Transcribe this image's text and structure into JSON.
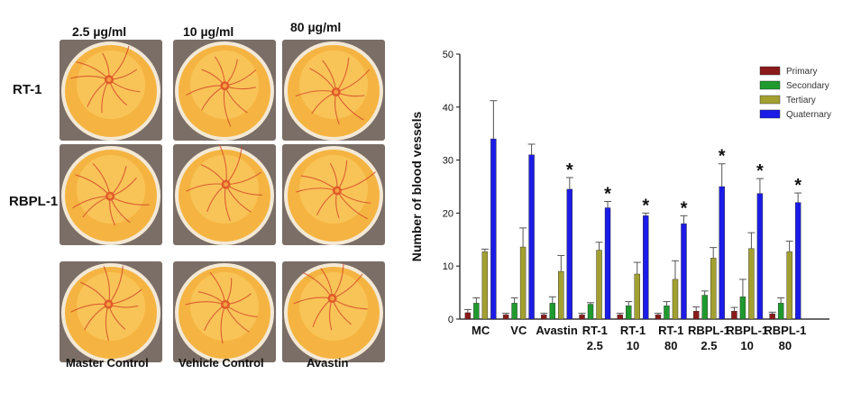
{
  "left_panel": {
    "column_labels": [
      "2.5 µg/ml",
      "10 µg/ml",
      "80 µg/ml"
    ],
    "row_labels": [
      "RT-1",
      "RBPL-1"
    ],
    "bottom_labels": [
      "Master Control",
      "Vehicle Control",
      "Avastin"
    ],
    "colors": {
      "egg_yolk": "#f5b441",
      "egg_shell": "#f3e9d6",
      "vessel": "#d2452a",
      "background": "#7a6e66"
    }
  },
  "chart_data": {
    "type": "bar",
    "title": "",
    "xlabel": "",
    "ylabel": "Number of blood vessels",
    "ylim": [
      0,
      50
    ],
    "yticks": [
      0,
      10,
      20,
      30,
      40,
      50
    ],
    "grid": false,
    "legend_position": "top-right",
    "categories": [
      [
        "MC"
      ],
      [
        "VC"
      ],
      [
        "Avastin"
      ],
      [
        "RT-1",
        "2.5"
      ],
      [
        "RT-1",
        "10"
      ],
      [
        "RT-1",
        "80"
      ],
      [
        "RBPL-1",
        "2.5"
      ],
      [
        "RBPL-1",
        "10"
      ],
      [
        "RBPL-1",
        "80"
      ]
    ],
    "series": [
      {
        "name": "Primary",
        "color": "#8b1a1a",
        "values": [
          1.2,
          0.8,
          0.8,
          0.8,
          0.8,
          0.8,
          1.5,
          1.5,
          1.0
        ],
        "errors": [
          0.6,
          0.3,
          0.3,
          0.3,
          0.3,
          0.3,
          0.8,
          0.7,
          0.3
        ]
      },
      {
        "name": "Secondary",
        "color": "#1f9a2e",
        "values": [
          3.0,
          3.0,
          3.0,
          2.8,
          2.5,
          2.5,
          4.5,
          4.2,
          3.0
        ],
        "errors": [
          1.0,
          1.0,
          1.2,
          0.3,
          0.8,
          0.8,
          0.8,
          3.3,
          1.0
        ]
      },
      {
        "name": "Tertiary",
        "color": "#a3a032",
        "values": [
          12.7,
          13.6,
          9.0,
          13.0,
          8.5,
          7.5,
          11.5,
          13.3,
          12.7
        ],
        "errors": [
          0.5,
          3.6,
          3.0,
          1.5,
          2.2,
          3.5,
          2.0,
          3.0,
          2.0
        ]
      },
      {
        "name": "Quaternary",
        "color": "#1c1ce6",
        "values": [
          34.0,
          31.0,
          24.5,
          21.0,
          19.5,
          18.0,
          25.0,
          23.7,
          22.0
        ],
        "errors": [
          7.2,
          2.0,
          2.2,
          1.2,
          0.5,
          1.5,
          4.3,
          2.8,
          1.8
        ]
      }
    ],
    "annotations": [
      {
        "text": "*",
        "category_index": 2
      },
      {
        "text": "*",
        "category_index": 3
      },
      {
        "text": "*",
        "category_index": 4
      },
      {
        "text": "*",
        "category_index": 5
      },
      {
        "text": "*",
        "category_index": 6
      },
      {
        "text": "*",
        "category_index": 7
      },
      {
        "text": "*",
        "category_index": 8
      }
    ]
  }
}
